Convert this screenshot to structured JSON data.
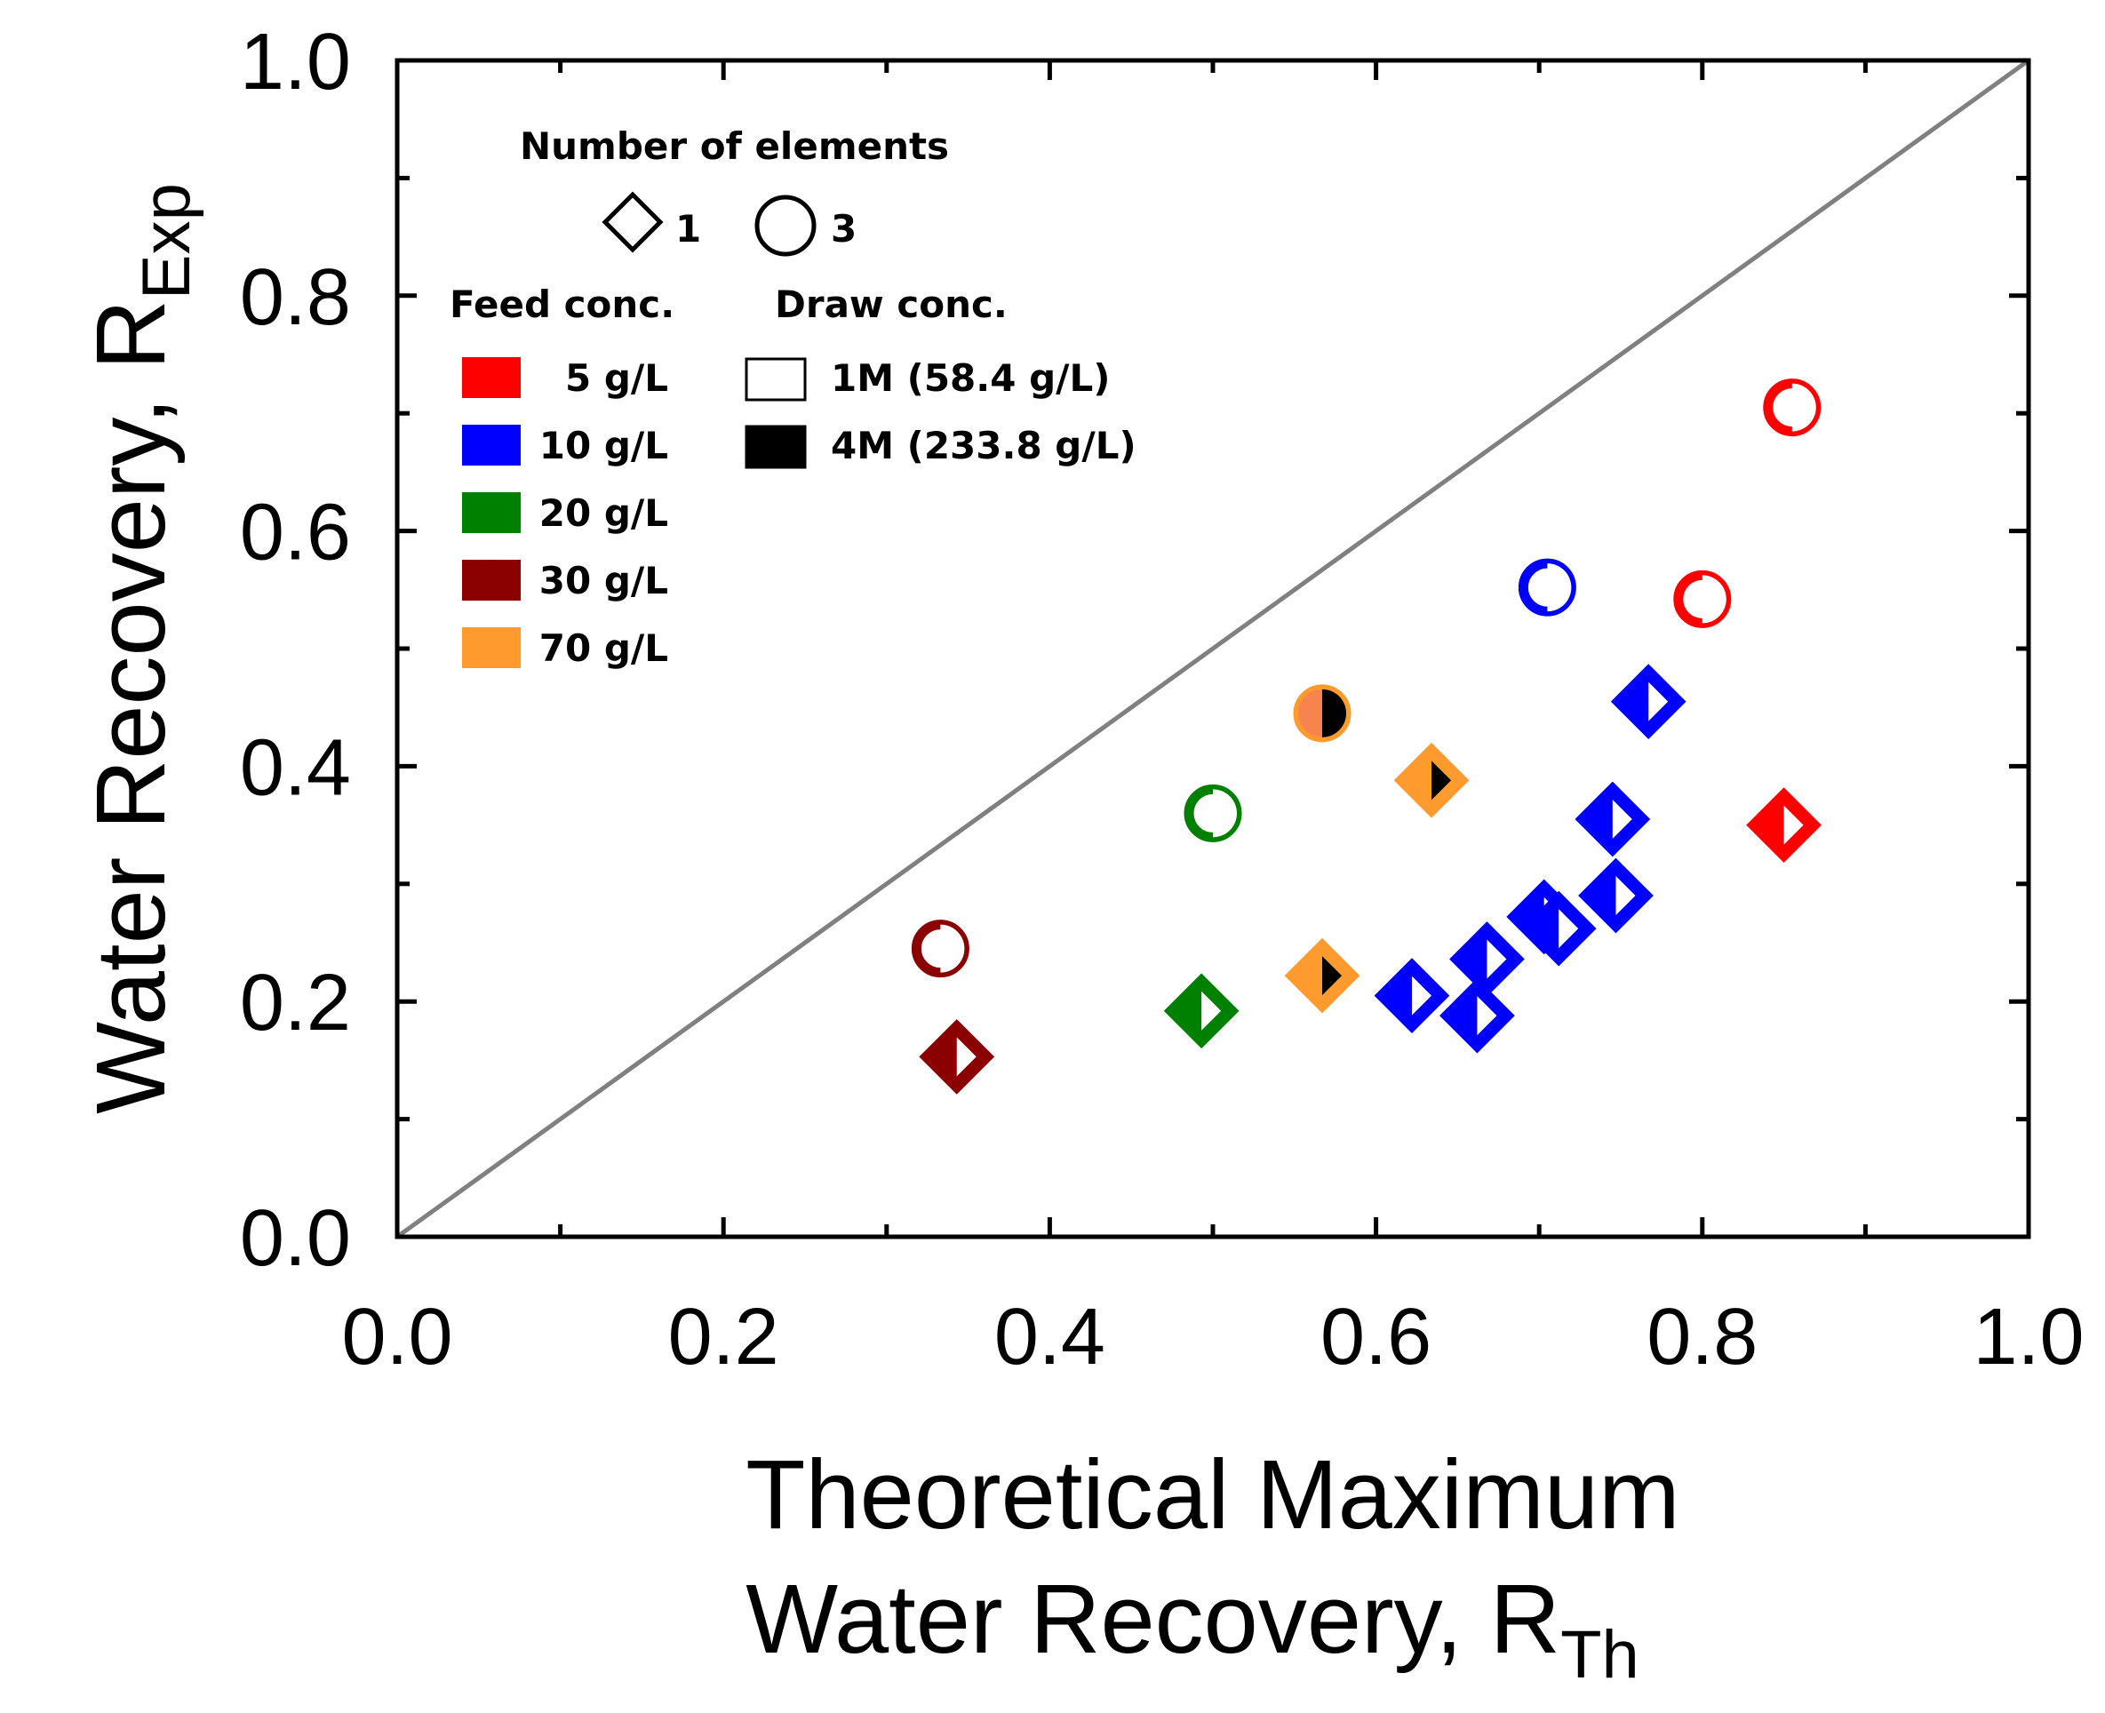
{
  "chart_data": {
    "type": "scatter",
    "xlabel": {
      "main": "Theoretical Maximum",
      "line2": "Water Recovery, R",
      "sub": "Th"
    },
    "ylabel": {
      "main": "Water Recovery, R",
      "sub": "Exp"
    },
    "xlim": [
      0,
      1
    ],
    "ylim": [
      0,
      1
    ],
    "xticks": [
      "0.0",
      "0.2",
      "0.4",
      "0.6",
      "0.8",
      "1.0"
    ],
    "yticks": [
      "0.0",
      "0.2",
      "0.4",
      "0.6",
      "0.8",
      "1.0"
    ],
    "reference_line": {
      "from": [
        0,
        0
      ],
      "to": [
        1,
        1
      ],
      "color": "#808080"
    },
    "legend": {
      "elements_title": "Number of elements",
      "elements": [
        {
          "shape": "diamond",
          "label": "1"
        },
        {
          "shape": "circle",
          "label": "3"
        }
      ],
      "feed_title": "Feed conc.",
      "feed": [
        {
          "label": "5 g/L",
          "color": "#ff0000"
        },
        {
          "label": "10 g/L",
          "color": "#0000ff"
        },
        {
          "label": "20 g/L",
          "color": "#008000"
        },
        {
          "label": "30 g/L",
          "color": "#8b0000"
        },
        {
          "label": "70 g/L",
          "color": "#ff9a2e"
        }
      ],
      "draw_title": "Draw conc.",
      "draw": [
        {
          "label": "1M (58.4 g/L)",
          "fill": "#ffffff"
        },
        {
          "label": "4M (233.8 g/L)",
          "fill": "#000000"
        }
      ]
    },
    "series": [
      {
        "feed": "5 g/L",
        "color": "#ff0000",
        "points": [
          {
            "x": 0.855,
            "y": 0.705,
            "shape": "circle",
            "draw": "1M"
          },
          {
            "x": 0.8,
            "y": 0.542,
            "shape": "circle",
            "draw": "1M"
          },
          {
            "x": 0.85,
            "y": 0.35,
            "shape": "diamond",
            "draw": "1M"
          }
        ]
      },
      {
        "feed": "10 g/L",
        "color": "#0000ff",
        "points": [
          {
            "x": 0.705,
            "y": 0.552,
            "shape": "circle",
            "draw": "1M"
          },
          {
            "x": 0.767,
            "y": 0.455,
            "shape": "diamond",
            "draw": "1M"
          },
          {
            "x": 0.745,
            "y": 0.355,
            "shape": "diamond",
            "draw": "1M"
          },
          {
            "x": 0.747,
            "y": 0.29,
            "shape": "diamond",
            "draw": "1M"
          },
          {
            "x": 0.703,
            "y": 0.272,
            "shape": "diamond",
            "draw": "1M"
          },
          {
            "x": 0.712,
            "y": 0.262,
            "shape": "diamond",
            "draw": "1M"
          },
          {
            "x": 0.668,
            "y": 0.236,
            "shape": "diamond",
            "draw": "1M"
          },
          {
            "x": 0.622,
            "y": 0.205,
            "shape": "diamond",
            "draw": "1M"
          },
          {
            "x": 0.662,
            "y": 0.188,
            "shape": "diamond",
            "draw": "1M"
          }
        ]
      },
      {
        "feed": "20 g/L",
        "color": "#008000",
        "points": [
          {
            "x": 0.5,
            "y": 0.36,
            "shape": "circle",
            "draw": "1M"
          },
          {
            "x": 0.493,
            "y": 0.192,
            "shape": "diamond",
            "draw": "1M"
          }
        ]
      },
      {
        "feed": "30 g/L",
        "color": "#8b0000",
        "points": [
          {
            "x": 0.333,
            "y": 0.245,
            "shape": "circle",
            "draw": "1M"
          },
          {
            "x": 0.343,
            "y": 0.153,
            "shape": "diamond",
            "draw": "1M"
          }
        ]
      },
      {
        "feed": "70 g/L",
        "color": "#ff9a2e",
        "points": [
          {
            "x": 0.567,
            "y": 0.445,
            "shape": "circle",
            "draw": "4M",
            "face": "#f7844f"
          },
          {
            "x": 0.634,
            "y": 0.388,
            "shape": "diamond",
            "draw": "4M"
          },
          {
            "x": 0.567,
            "y": 0.222,
            "shape": "diamond",
            "draw": "4M"
          }
        ]
      }
    ]
  }
}
